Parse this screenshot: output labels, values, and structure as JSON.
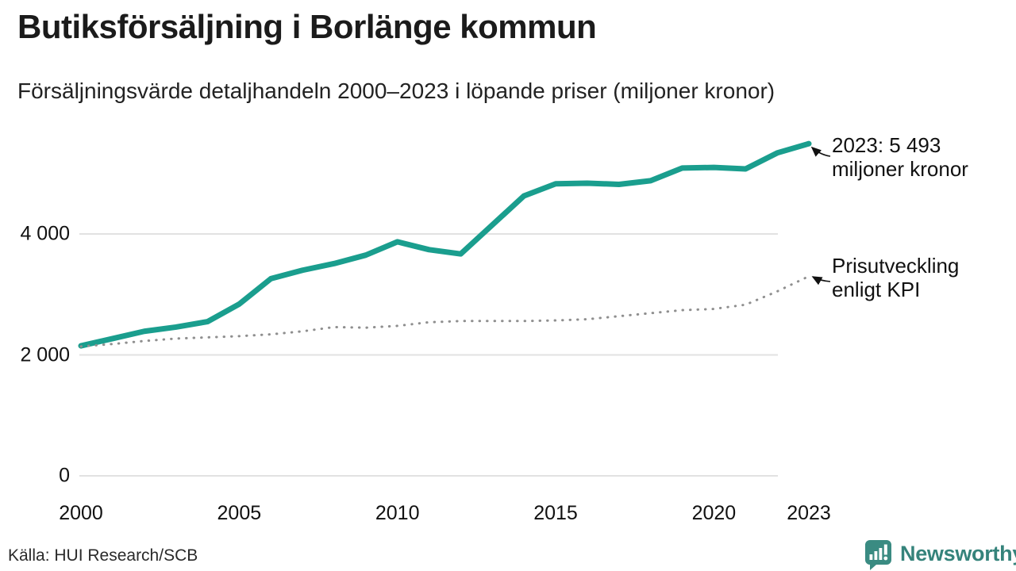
{
  "title": "Butiksförsäljning i Borlänge kommun",
  "subtitle": "Försäljningsvärde detaljhandeln 2000–2023 i löpande priser (miljoner kronor)",
  "source": "Källa: HUI Research/SCB",
  "brand": {
    "name": "Newsworthy",
    "color": "#35837b"
  },
  "colors": {
    "sales_line": "#1a9e8e",
    "kpi_line": "#8f8f8f",
    "gridline": "#e2e2e2",
    "text": "#111111"
  },
  "annotations": {
    "sales": {
      "line1": "2023: 5 493",
      "line2": "miljoner kronor"
    },
    "kpi": {
      "line1": "Prisutveckling",
      "line2": "enligt KPI"
    }
  },
  "chart_data": {
    "type": "line",
    "title": "Butiksförsäljning i Borlänge kommun",
    "subtitle": "Försäljningsvärde detaljhandeln 2000–2023 i löpande priser (miljoner kronor)",
    "x": [
      2000,
      2001,
      2002,
      2003,
      2004,
      2005,
      2006,
      2007,
      2008,
      2009,
      2010,
      2011,
      2012,
      2013,
      2014,
      2015,
      2016,
      2017,
      2018,
      2019,
      2020,
      2021,
      2022,
      2023
    ],
    "series": [
      {
        "name": "Butiksförsäljning (löpande priser, miljoner kronor)",
        "style": "solid",
        "color": "#1a9e8e",
        "values": [
          2150,
          2270,
          2390,
          2460,
          2550,
          2840,
          3260,
          3400,
          3510,
          3650,
          3870,
          3740,
          3670,
          4150,
          4630,
          4830,
          4840,
          4820,
          4880,
          5090,
          5100,
          5075,
          5340,
          5493
        ]
      },
      {
        "name": "Prisutveckling enligt KPI",
        "style": "dotted",
        "color": "#8f8f8f",
        "values": [
          2140,
          2180,
          2230,
          2270,
          2290,
          2310,
          2340,
          2390,
          2460,
          2450,
          2480,
          2540,
          2560,
          2560,
          2560,
          2570,
          2590,
          2640,
          2690,
          2740,
          2760,
          2830,
          3050,
          3300
        ]
      }
    ],
    "highlight_value_2023": "5 493",
    "xticks": [
      {
        "v": 2000,
        "label": "2000"
      },
      {
        "v": 2005,
        "label": "2005"
      },
      {
        "v": 2010,
        "label": "2010"
      },
      {
        "v": 2015,
        "label": "2015"
      },
      {
        "v": 2020,
        "label": "2020"
      },
      {
        "v": 2023,
        "label": "2023"
      }
    ],
    "yticks": [
      {
        "v": 0,
        "label": "0"
      },
      {
        "v": 2000,
        "label": "2 000"
      },
      {
        "v": 4000,
        "label": "4 000"
      }
    ],
    "xlim": [
      2000,
      2023
    ],
    "ylim": [
      0,
      5900
    ],
    "grid": "horizontal-only",
    "legend": "inline-annotations"
  }
}
